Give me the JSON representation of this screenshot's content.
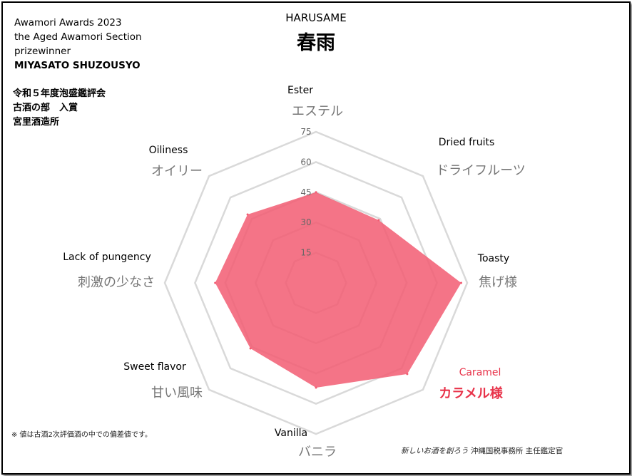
{
  "award_en": [
    "Awamori Awards 2023",
    "the Aged Awamori Section",
    "prizewinner",
    "MIYASATO SHUZOUSYO"
  ],
  "award_jp": [
    "令和５年度泡盛鑑評会",
    "古酒の部　入賞",
    "宮里酒造所"
  ],
  "title_en": "HARUSAME",
  "title_jp": "春雨",
  "footnote": "※ 値は古酒2次評価酒の中での偏差値です。",
  "credit_italic": "新しいお酒を創ろう",
  "credit_rest": "沖縄国税事務所 主任鑑定官",
  "colors": {
    "fill": "#f25c72",
    "highlight": "#e8334a",
    "grid": "#d9d9d9"
  },
  "chart_data": {
    "type": "radar",
    "axes": [
      {
        "en": "Ester",
        "jp": "エステル",
        "highlight": false
      },
      {
        "en": "Dried fruits",
        "jp": "ドライフルーツ",
        "highlight": false
      },
      {
        "en": "Toasty",
        "jp": "焦げ様",
        "highlight": false
      },
      {
        "en": "Caramel",
        "jp": "カラメル様",
        "highlight": true
      },
      {
        "en": "Vanilla",
        "jp": "バニラ",
        "highlight": false
      },
      {
        "en": "Sweet flavor",
        "jp": "甘い風味",
        "highlight": false
      },
      {
        "en": "Lack of pungency",
        "jp": "刺激の少なさ",
        "highlight": false
      },
      {
        "en": "Oiliness",
        "jp": "オイリー",
        "highlight": false
      }
    ],
    "values": [
      45,
      44,
      72,
      64,
      52,
      46,
      50,
      48
    ],
    "ticks": [
      15,
      30,
      45,
      60,
      75
    ],
    "range": [
      0,
      75
    ],
    "grid": true
  }
}
